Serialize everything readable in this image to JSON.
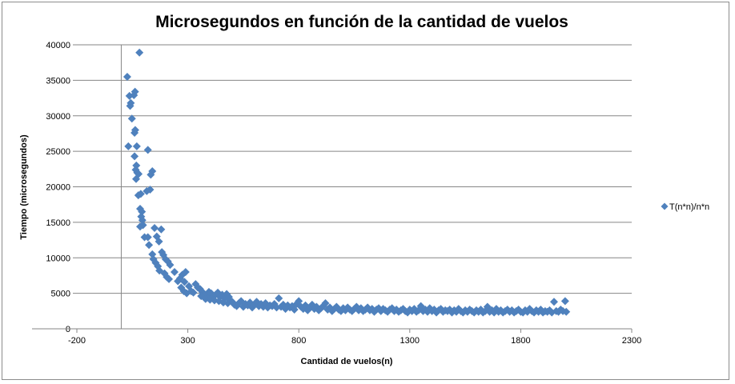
{
  "chart_data": {
    "type": "scatter",
    "title": "Microsegundos en función de la  cantidad de vuelos",
    "xlabel": "Cantidad de vuelos(n)",
    "ylabel": "Tiempo  (microsegundos)",
    "xlim": [
      -200,
      2300
    ],
    "ylim": [
      0,
      40000
    ],
    "xticks": [
      -200,
      300,
      800,
      1300,
      1800,
      2300
    ],
    "yticks": [
      0,
      5000,
      10000,
      15000,
      20000,
      25000,
      30000,
      35000,
      40000
    ],
    "grid": "horizontal",
    "legend_position": "right",
    "marker": "diamond",
    "series_color": "#4F81BD",
    "series": [
      {
        "name": "T(n*n)/n*n",
        "points": [
          [
            27,
            35500
          ],
          [
            37,
            32800
          ],
          [
            43,
            31800
          ],
          [
            40,
            31400
          ],
          [
            48,
            29600
          ],
          [
            62,
            33400
          ],
          [
            57,
            32900
          ],
          [
            82,
            38900
          ],
          [
            32,
            25700
          ],
          [
            60,
            27600
          ],
          [
            63,
            28000
          ],
          [
            70,
            25700
          ],
          [
            60,
            24300
          ],
          [
            68,
            23000
          ],
          [
            65,
            22400
          ],
          [
            72,
            22000
          ],
          [
            67,
            21100
          ],
          [
            77,
            18800
          ],
          [
            88,
            19000
          ],
          [
            78,
            21800
          ],
          [
            85,
            16900
          ],
          [
            93,
            16500
          ],
          [
            90,
            15800
          ],
          [
            95,
            15300
          ],
          [
            98,
            14600
          ],
          [
            85,
            14400
          ],
          [
            120,
            25200
          ],
          [
            140,
            22200
          ],
          [
            133,
            21700
          ],
          [
            115,
            19400
          ],
          [
            130,
            19600
          ],
          [
            105,
            12900
          ],
          [
            120,
            12900
          ],
          [
            125,
            11800
          ],
          [
            140,
            10500
          ],
          [
            150,
            14200
          ],
          [
            160,
            13000
          ],
          [
            170,
            12300
          ],
          [
            180,
            14000
          ],
          [
            145,
            9800
          ],
          [
            155,
            9300
          ],
          [
            165,
            8800
          ],
          [
            172,
            8200
          ],
          [
            183,
            10800
          ],
          [
            190,
            10400
          ],
          [
            200,
            9800
          ],
          [
            210,
            9500
          ],
          [
            220,
            9000
          ],
          [
            195,
            7800
          ],
          [
            205,
            7300
          ],
          [
            215,
            7000
          ],
          [
            240,
            8000
          ],
          [
            255,
            6700
          ],
          [
            265,
            7100
          ],
          [
            285,
            6600
          ],
          [
            290,
            8000
          ],
          [
            275,
            7600
          ],
          [
            270,
            5800
          ],
          [
            282,
            5300
          ],
          [
            295,
            5000
          ],
          [
            305,
            6000
          ],
          [
            315,
            5300
          ],
          [
            325,
            5100
          ],
          [
            335,
            6300
          ],
          [
            345,
            5800
          ],
          [
            355,
            5600
          ],
          [
            365,
            5200
          ],
          [
            375,
            4900
          ],
          [
            385,
            4700
          ],
          [
            395,
            5200
          ],
          [
            405,
            5000
          ],
          [
            415,
            4600
          ],
          [
            425,
            4800
          ],
          [
            435,
            5100
          ],
          [
            445,
            4500
          ],
          [
            455,
            4800
          ],
          [
            465,
            4300
          ],
          [
            475,
            4900
          ],
          [
            485,
            4500
          ],
          [
            490,
            4000
          ],
          [
            360,
            4600
          ],
          [
            380,
            4200
          ],
          [
            400,
            4100
          ],
          [
            420,
            4000
          ],
          [
            440,
            3900
          ],
          [
            460,
            3700
          ],
          [
            480,
            3600
          ],
          [
            500,
            3800
          ],
          [
            510,
            3400
          ],
          [
            520,
            3200
          ],
          [
            530,
            3600
          ],
          [
            540,
            3900
          ],
          [
            550,
            3100
          ],
          [
            560,
            3500
          ],
          [
            570,
            3300
          ],
          [
            580,
            3700
          ],
          [
            590,
            3000
          ],
          [
            600,
            3400
          ],
          [
            610,
            3800
          ],
          [
            620,
            3200
          ],
          [
            630,
            3500
          ],
          [
            640,
            3100
          ],
          [
            650,
            3600
          ],
          [
            660,
            3000
          ],
          [
            670,
            3300
          ],
          [
            680,
            3200
          ],
          [
            690,
            3500
          ],
          [
            700,
            3000
          ],
          [
            710,
            4300
          ],
          [
            720,
            3100
          ],
          [
            730,
            3400
          ],
          [
            740,
            2800
          ],
          [
            750,
            3300
          ],
          [
            760,
            3000
          ],
          [
            770,
            3200
          ],
          [
            780,
            2700
          ],
          [
            790,
            3500
          ],
          [
            800,
            3900
          ],
          [
            810,
            3100
          ],
          [
            820,
            2800
          ],
          [
            830,
            3300
          ],
          [
            840,
            2600
          ],
          [
            850,
            3000
          ],
          [
            860,
            3400
          ],
          [
            870,
            2800
          ],
          [
            880,
            3100
          ],
          [
            890,
            2600
          ],
          [
            900,
            2900
          ],
          [
            910,
            3200
          ],
          [
            920,
            3600
          ],
          [
            930,
            2700
          ],
          [
            940,
            3000
          ],
          [
            950,
            2500
          ],
          [
            960,
            2800
          ],
          [
            970,
            3100
          ],
          [
            980,
            2700
          ],
          [
            990,
            2500
          ],
          [
            1000,
            2900
          ],
          [
            1010,
            2600
          ],
          [
            1020,
            3000
          ],
          [
            1030,
            2700
          ],
          [
            1040,
            2500
          ],
          [
            1050,
            2800
          ],
          [
            1060,
            3100
          ],
          [
            1070,
            2600
          ],
          [
            1080,
            2900
          ],
          [
            1090,
            2500
          ],
          [
            1100,
            2700
          ],
          [
            1110,
            3000
          ],
          [
            1120,
            2600
          ],
          [
            1130,
            2800
          ],
          [
            1140,
            2400
          ],
          [
            1150,
            2700
          ],
          [
            1160,
            2900
          ],
          [
            1170,
            2500
          ],
          [
            1180,
            2800
          ],
          [
            1190,
            2600
          ],
          [
            1200,
            2400
          ],
          [
            1210,
            2700
          ],
          [
            1220,
            2900
          ],
          [
            1230,
            2500
          ],
          [
            1240,
            2700
          ],
          [
            1250,
            2400
          ],
          [
            1260,
            2600
          ],
          [
            1270,
            2800
          ],
          [
            1280,
            2500
          ],
          [
            1290,
            2300
          ],
          [
            1300,
            2700
          ],
          [
            1310,
            2500
          ],
          [
            1320,
            2800
          ],
          [
            1330,
            2400
          ],
          [
            1340,
            2600
          ],
          [
            1350,
            3200
          ],
          [
            1360,
            2500
          ],
          [
            1370,
            2700
          ],
          [
            1380,
            2400
          ],
          [
            1390,
            2900
          ],
          [
            1400,
            2500
          ],
          [
            1410,
            2700
          ],
          [
            1420,
            2300
          ],
          [
            1430,
            2600
          ],
          [
            1440,
            2800
          ],
          [
            1450,
            2400
          ],
          [
            1460,
            2600
          ],
          [
            1470,
            2500
          ],
          [
            1480,
            2700
          ],
          [
            1490,
            2300
          ],
          [
            1500,
            2600
          ],
          [
            1510,
            2400
          ],
          [
            1520,
            2800
          ],
          [
            1530,
            2500
          ],
          [
            1540,
            2300
          ],
          [
            1550,
            2600
          ],
          [
            1560,
            2400
          ],
          [
            1570,
            2700
          ],
          [
            1580,
            2500
          ],
          [
            1590,
            2300
          ],
          [
            1600,
            2600
          ],
          [
            1610,
            2400
          ],
          [
            1620,
            2700
          ],
          [
            1630,
            2300
          ],
          [
            1640,
            2500
          ],
          [
            1650,
            3100
          ],
          [
            1660,
            2400
          ],
          [
            1670,
            2600
          ],
          [
            1680,
            2300
          ],
          [
            1690,
            2800
          ],
          [
            1700,
            2400
          ],
          [
            1710,
            2600
          ],
          [
            1720,
            2300
          ],
          [
            1730,
            2500
          ],
          [
            1740,
            2700
          ],
          [
            1750,
            2400
          ],
          [
            1760,
            2600
          ],
          [
            1770,
            2300
          ],
          [
            1780,
            2500
          ],
          [
            1790,
            2700
          ],
          [
            1800,
            2400
          ],
          [
            1810,
            2300
          ],
          [
            1820,
            2600
          ],
          [
            1830,
            2400
          ],
          [
            1840,
            2800
          ],
          [
            1850,
            2500
          ],
          [
            1860,
            2300
          ],
          [
            1870,
            2600
          ],
          [
            1880,
            2400
          ],
          [
            1890,
            2700
          ],
          [
            1900,
            2300
          ],
          [
            1910,
            2500
          ],
          [
            1920,
            2400
          ],
          [
            1930,
            2600
          ],
          [
            1940,
            2300
          ],
          [
            1950,
            3800
          ],
          [
            1960,
            2500
          ],
          [
            1970,
            2400
          ],
          [
            1980,
            2700
          ],
          [
            1990,
            2500
          ],
          [
            2000,
            3900
          ],
          [
            2005,
            2400
          ]
        ]
      }
    ]
  }
}
